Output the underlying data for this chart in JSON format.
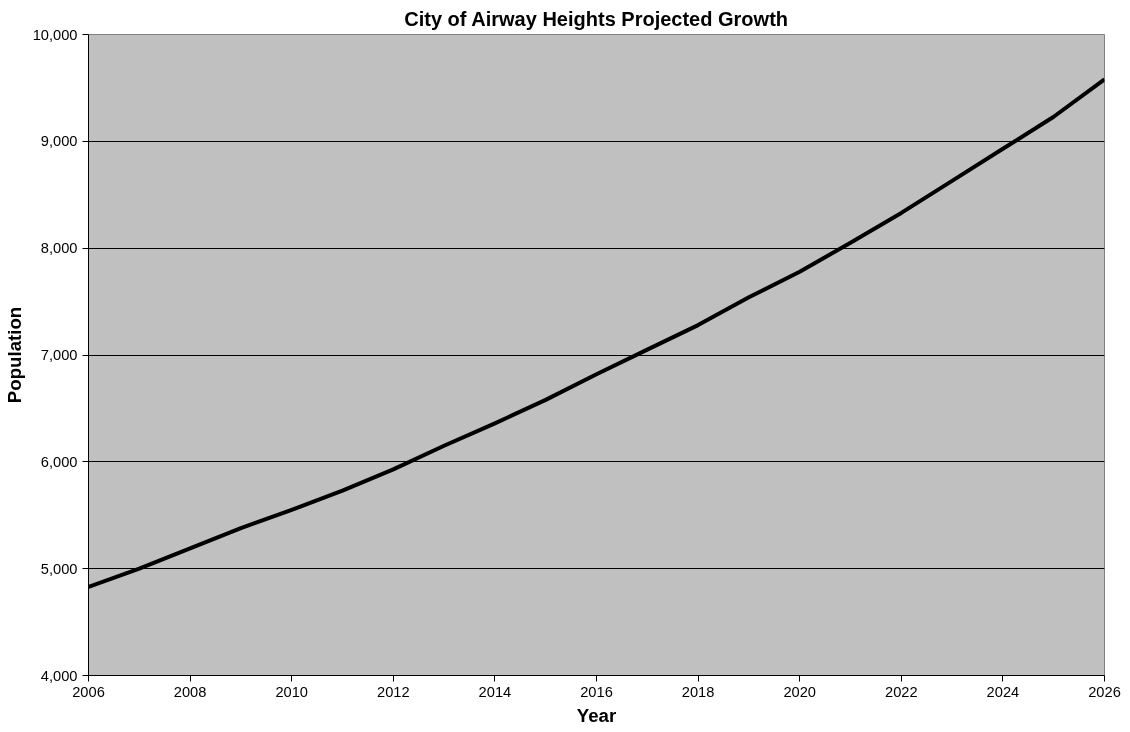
{
  "chart_data": {
    "type": "line",
    "title": "City of Airway Heights Projected Growth",
    "xlabel": "Year",
    "ylabel": "Population",
    "x": [
      2006,
      2007,
      2008,
      2009,
      2010,
      2011,
      2012,
      2013,
      2014,
      2015,
      2016,
      2017,
      2018,
      2019,
      2020,
      2021,
      2022,
      2023,
      2024,
      2025,
      2026
    ],
    "series": [
      {
        "color": "#000000",
        "values": [
          4830,
          5000,
          5190,
          5380,
          5550,
          5730,
          5930,
          6150,
          6360,
          6580,
          6820,
          7050,
          7280,
          7540,
          7780,
          8050,
          8330,
          8630,
          8930,
          9230,
          9580
        ]
      }
    ],
    "xlim": [
      2006,
      2026
    ],
    "xticks": [
      2006,
      2008,
      2010,
      2012,
      2014,
      2016,
      2018,
      2020,
      2022,
      2024,
      2026
    ],
    "ylim": [
      4000,
      10000
    ],
    "yticks": [
      {
        "value": 4000,
        "label": "4,000"
      },
      {
        "value": 5000,
        "label": "5,000"
      },
      {
        "value": 6000,
        "label": "6,000"
      },
      {
        "value": 7000,
        "label": "7,000"
      },
      {
        "value": 8000,
        "label": "8,000"
      },
      {
        "value": 9000,
        "label": "9,000"
      },
      {
        "value": 10000,
        "label": "10,000"
      }
    ],
    "grid": "y",
    "marker": "none",
    "line_style": "solid"
  }
}
